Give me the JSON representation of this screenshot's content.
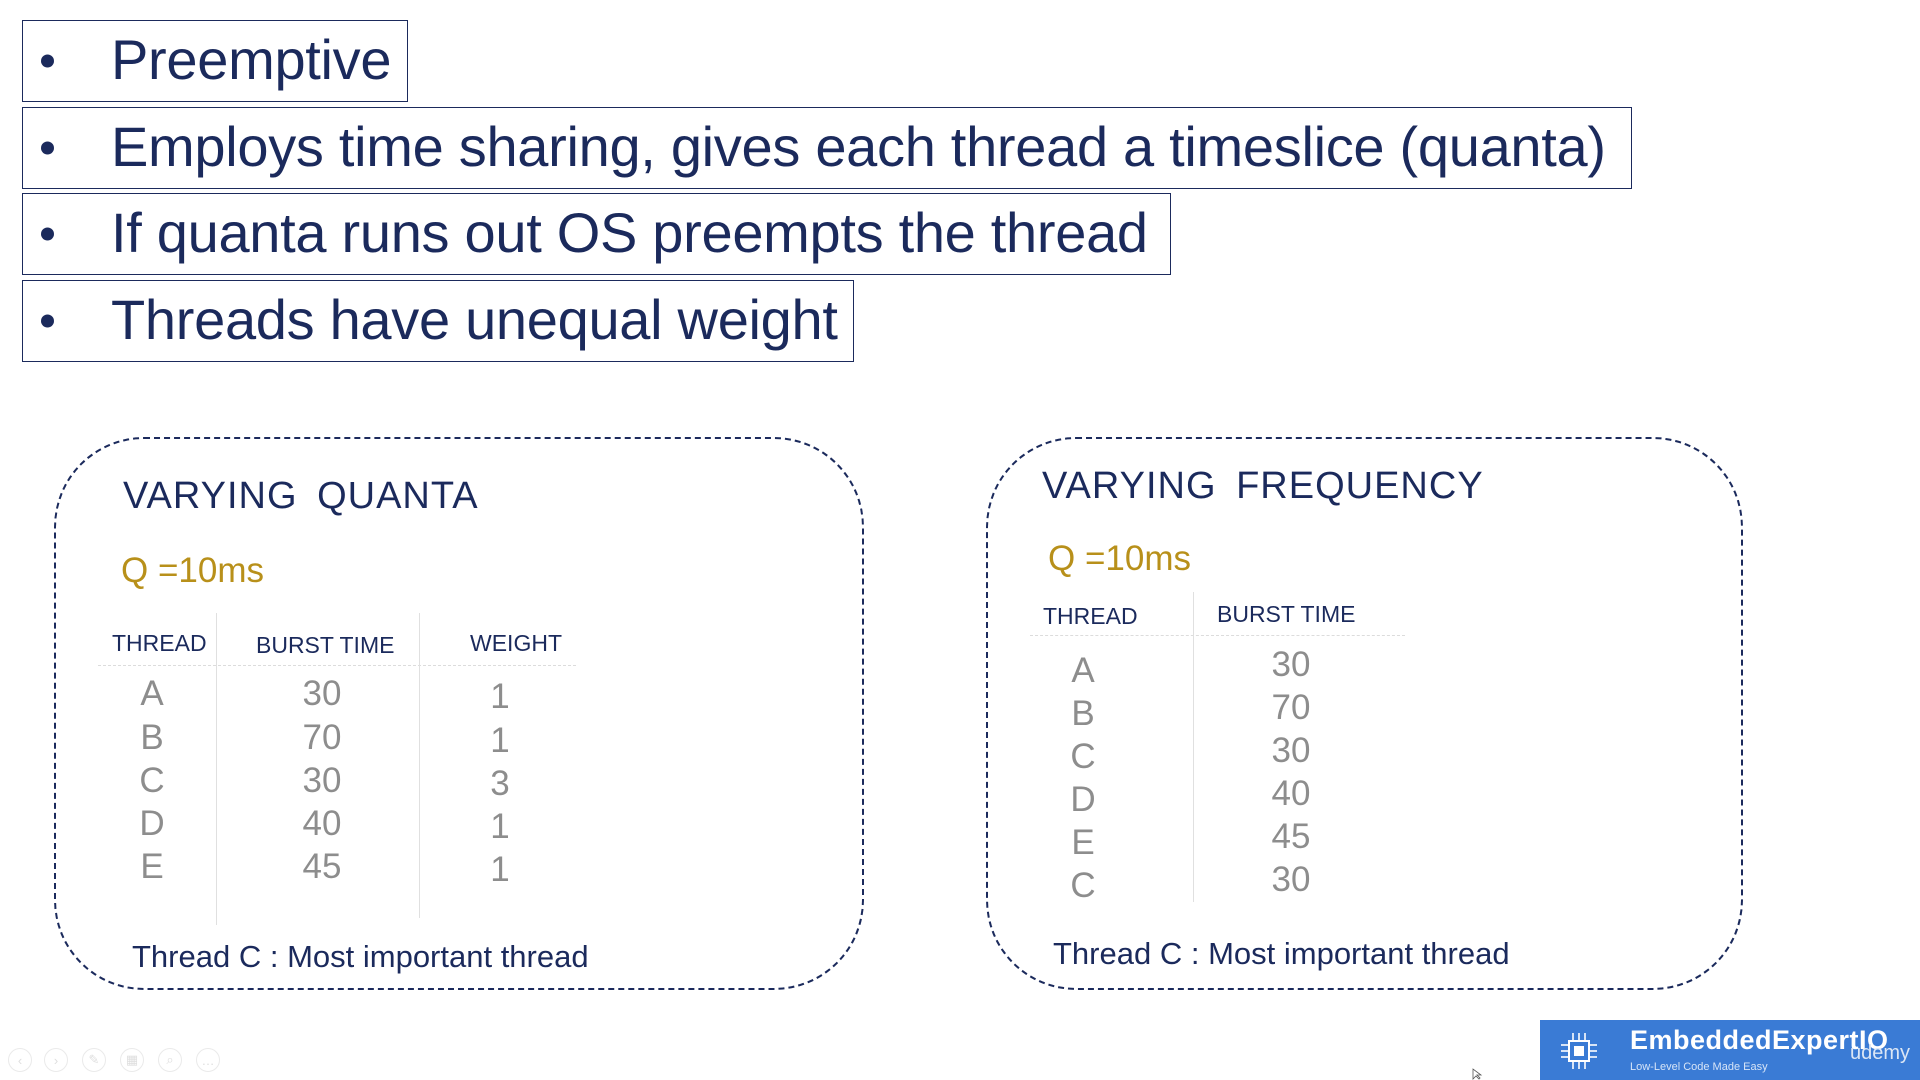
{
  "bullets": [
    "Preemptive",
    "Employs time sharing, gives each thread a timeslice (quanta)",
    "If quanta runs out OS preempts the thread",
    "Threads have unequal weight"
  ],
  "left_panel": {
    "title": "VARYING  QUANTA",
    "quanta": "Q  =10ms",
    "headers": {
      "thread": "THREAD",
      "burst": "BURST  TIME",
      "weight": "WEIGHT"
    },
    "rows": [
      {
        "thread": "A",
        "burst": "30",
        "weight": "1"
      },
      {
        "thread": "B",
        "burst": "70",
        "weight": "1"
      },
      {
        "thread": "C",
        "burst": "30",
        "weight": "3"
      },
      {
        "thread": "D",
        "burst": "40",
        "weight": "1"
      },
      {
        "thread": "E",
        "burst": "45",
        "weight": "1"
      }
    ],
    "footnote_bold": "Thread C",
    "footnote_rest": " : Most important thread"
  },
  "right_panel": {
    "title": "VARYING  FREQUENCY",
    "quanta": "Q  =10ms",
    "headers": {
      "thread": "THREAD",
      "burst": "BURST  TIME"
    },
    "rows": [
      {
        "thread": "A",
        "burst": "30"
      },
      {
        "thread": "B",
        "burst": "70"
      },
      {
        "thread": "C",
        "burst": "30"
      },
      {
        "thread": "D",
        "burst": "40"
      },
      {
        "thread": "E",
        "burst": "45"
      },
      {
        "thread": "C",
        "burst": "30"
      }
    ],
    "footnote_bold": "Thread C",
    "footnote_rest": " : Most important thread"
  },
  "branding": {
    "name": "EmbeddedExpertIO",
    "tagline": "Low-Level Code Made Easy",
    "platform": "udemy"
  },
  "colors": {
    "text": "#1b2a5c",
    "quanta": "#b8901a",
    "cell": "#8d8d8d",
    "brand_bg": "#3a7bd5"
  },
  "icons": [
    "prev-slide-icon",
    "next-slide-icon",
    "pen-icon",
    "slides-icon",
    "zoom-icon",
    "more-icon"
  ]
}
